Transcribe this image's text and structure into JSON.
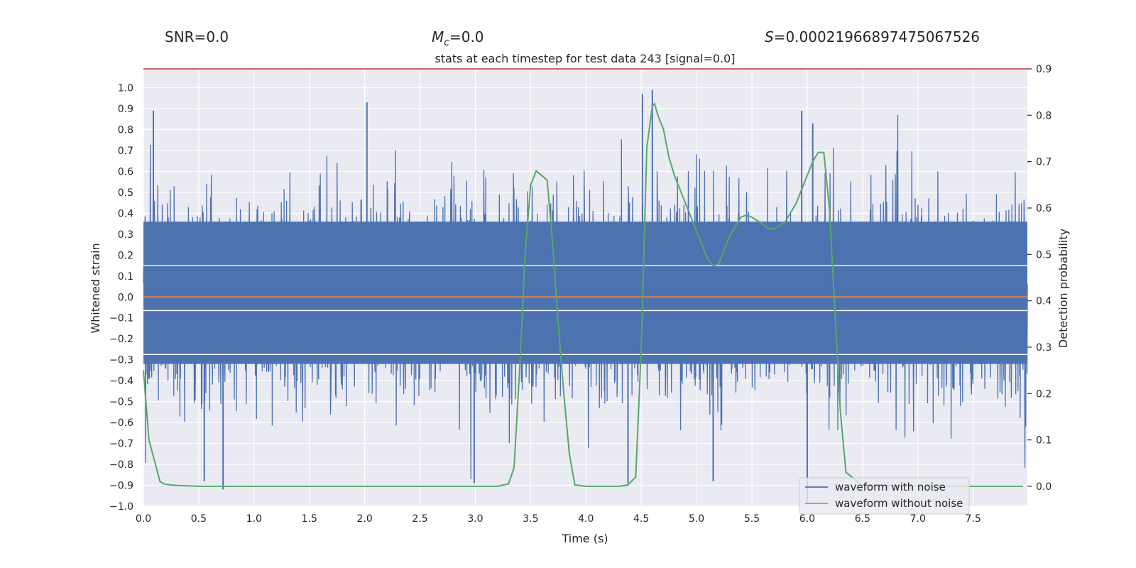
{
  "header": {
    "snr_label": "SNR=",
    "snr_value": "0.0",
    "mc_symbol": "M",
    "mc_subscript": "c",
    "mc_value": "=0.0",
    "s_symbol": "S",
    "s_value": "=0.00021966897475067526"
  },
  "chart_data": {
    "type": "line",
    "title": "stats at each timestep for test data 243 [signal=0.0]",
    "xlabel": "Time (s)",
    "ylabel": "Whitened strain",
    "y2label": "Detection probability",
    "xlim": [
      0,
      7.99
    ],
    "ylim": [
      -1.0,
      1.09
    ],
    "y2lim": [
      -0.043,
      0.9
    ],
    "x_ticks": [
      "0.0",
      "0.5",
      "1.0",
      "1.5",
      "2.0",
      "2.5",
      "3.0",
      "3.5",
      "4.0",
      "4.5",
      "5.0",
      "5.5",
      "6.0",
      "6.5",
      "7.0",
      "7.5"
    ],
    "x_tick_values": [
      0,
      0.5,
      1,
      1.5,
      2,
      2.5,
      3,
      3.5,
      4,
      4.5,
      5,
      5.5,
      6,
      6.5,
      7,
      7.5
    ],
    "y_ticks": [
      "1.0",
      "0.9",
      "0.8",
      "0.7",
      "0.6",
      "0.5",
      "0.4",
      "0.3",
      "0.2",
      "0.1",
      "0.0",
      "−0.1",
      "−0.2",
      "−0.3",
      "−0.4",
      "−0.5",
      "−0.6",
      "−0.7",
      "−0.8",
      "−0.9",
      "−1.0"
    ],
    "y_tick_values": [
      1.0,
      0.9,
      0.8,
      0.7,
      0.6,
      0.5,
      0.4,
      0.3,
      0.2,
      0.1,
      0.0,
      -0.1,
      -0.2,
      -0.3,
      -0.4,
      -0.5,
      -0.6,
      -0.7,
      -0.8,
      -0.9,
      -1.0
    ],
    "y2_ticks": [
      "0.9",
      "0.8",
      "0.7",
      "0.6",
      "0.5",
      "0.4",
      "0.3",
      "0.2",
      "0.1",
      "0.0"
    ],
    "y2_tick_values": [
      0.9,
      0.8,
      0.7,
      0.6,
      0.5,
      0.4,
      0.3,
      0.2,
      0.1,
      0.0
    ],
    "threshold": {
      "y2": 0.9,
      "color": "#c44e52"
    },
    "series": [
      {
        "name": "waveform with noise",
        "color": "#4c72b0",
        "axis": "left",
        "kind": "noise",
        "amplitude_range": [
          -0.91,
          0.99
        ],
        "notable_peaks": [
          {
            "x": 0.09,
            "y": 0.89
          },
          {
            "x": 2.02,
            "y": 0.93
          },
          {
            "x": 4.6,
            "y": 0.99
          },
          {
            "x": 4.51,
            "y": 0.97
          },
          {
            "x": 5.95,
            "y": 0.89
          },
          {
            "x": 6.05,
            "y": 0.83
          },
          {
            "x": 0.55,
            "y": -0.88
          },
          {
            "x": 0.72,
            "y": -0.92
          },
          {
            "x": 2.99,
            "y": -0.89
          },
          {
            "x": 4.38,
            "y": -0.89
          },
          {
            "x": 5.15,
            "y": -0.88
          },
          {
            "x": 6.0,
            "y": -0.98
          }
        ]
      },
      {
        "name": "waveform without noise",
        "color": "#dd8452",
        "axis": "left",
        "x": [
          0,
          7.99
        ],
        "y": [
          0,
          0
        ]
      },
      {
        "name": "detection probability",
        "color": "#55a868",
        "axis": "right",
        "x": [
          0,
          0.05,
          0.1,
          0.15,
          0.2,
          0.3,
          0.5,
          0.7,
          1.0,
          2.0,
          3.0,
          3.2,
          3.3,
          3.35,
          3.4,
          3.45,
          3.5,
          3.55,
          3.6,
          3.65,
          3.7,
          3.75,
          3.8,
          3.85,
          3.9,
          4.0,
          4.3,
          4.38,
          4.45,
          4.5,
          4.55,
          4.6,
          4.62,
          4.65,
          4.7,
          4.75,
          4.8,
          4.9,
          5.0,
          5.05,
          5.1,
          5.15,
          5.2,
          5.3,
          5.4,
          5.45,
          5.5,
          5.6,
          5.65,
          5.7,
          5.8,
          5.9,
          6.0,
          6.05,
          6.1,
          6.15,
          6.2,
          6.25,
          6.3,
          6.35,
          6.5,
          7.0,
          7.5,
          7.95
        ],
        "y": [
          0.25,
          0.1,
          0.055,
          0.01,
          0.004,
          0.002,
          0.0,
          0.0,
          0.0,
          0.0,
          0.0,
          0.0,
          0.005,
          0.04,
          0.25,
          0.5,
          0.65,
          0.68,
          0.67,
          0.66,
          0.52,
          0.35,
          0.2,
          0.07,
          0.003,
          0.0,
          0.0,
          0.003,
          0.02,
          0.3,
          0.73,
          0.82,
          0.825,
          0.8,
          0.77,
          0.71,
          0.67,
          0.61,
          0.55,
          0.52,
          0.49,
          0.475,
          0.48,
          0.54,
          0.58,
          0.585,
          0.58,
          0.565,
          0.555,
          0.555,
          0.57,
          0.61,
          0.67,
          0.7,
          0.72,
          0.72,
          0.6,
          0.38,
          0.16,
          0.03,
          0.002,
          0.0,
          0.0,
          0.0
        ]
      }
    ],
    "legend": {
      "location": "lower-right",
      "entries": [
        {
          "label": "waveform with noise",
          "color": "#4c72b0"
        },
        {
          "label": "waveform without noise",
          "color": "#dd8452"
        }
      ]
    },
    "grid": true,
    "background": "#eaeaf2"
  }
}
